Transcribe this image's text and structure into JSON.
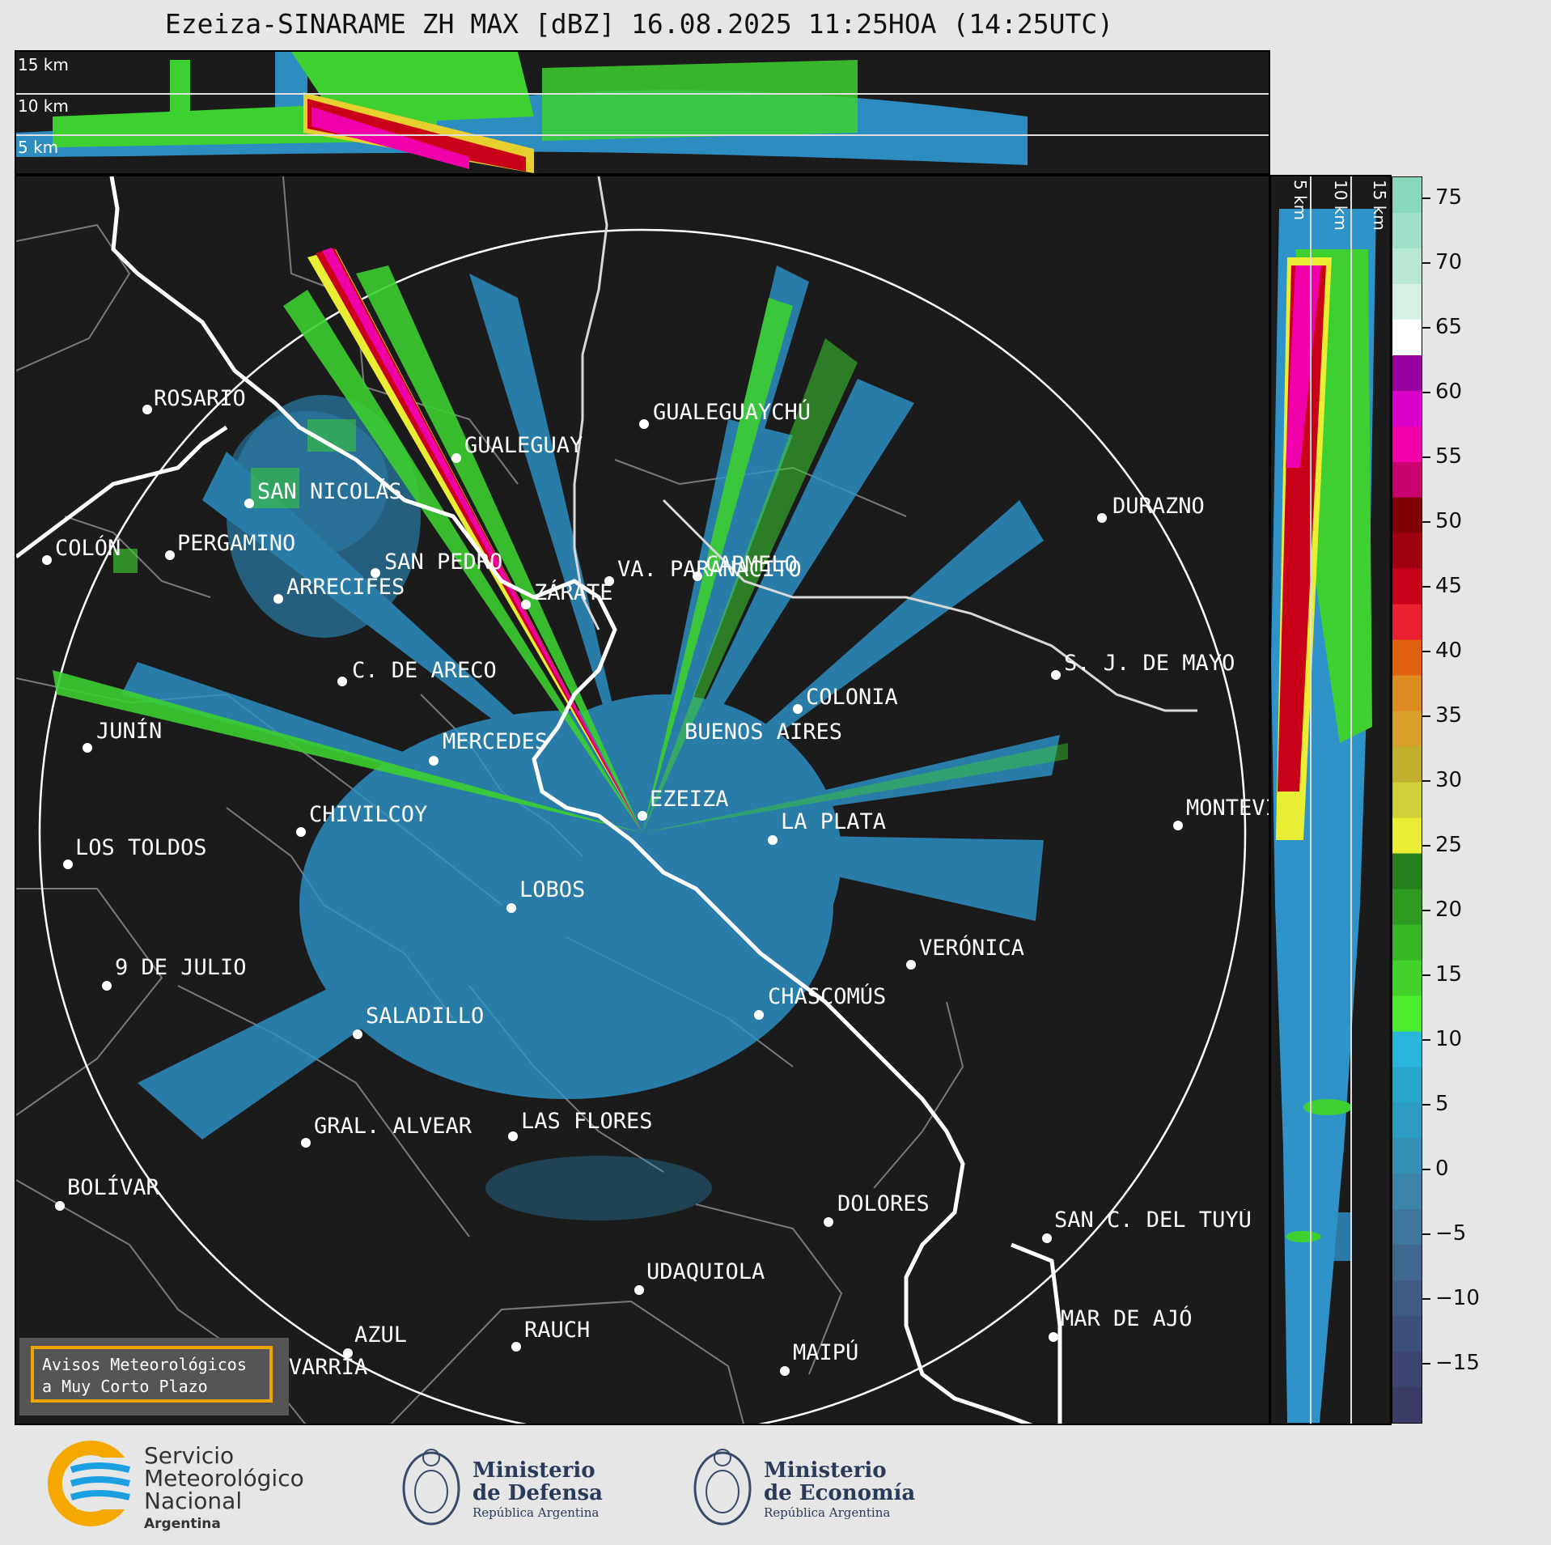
{
  "title": "Ezeiza-SINARAME ZH MAX [dBZ] 16.08.2025 11:25HOA (14:25UTC)",
  "altitude_labels": [
    "15 km",
    "10 km",
    "5 km"
  ],
  "colorbar": {
    "ticks": [
      "75",
      "70",
      "65",
      "60",
      "55",
      "50",
      "45",
      "40",
      "35",
      "30",
      "25",
      "20",
      "15",
      "10",
      "5",
      "0",
      "−5",
      "−10",
      "−15"
    ],
    "colors": [
      "#3a3c66",
      "#3b4570",
      "#3d5079",
      "#3f5b84",
      "#3f678f",
      "#3e759b",
      "#3b83a8",
      "#3590b6",
      "#2e9bc2",
      "#28a7ce",
      "#2ab6dc",
      "#4ded2f",
      "#43d12b",
      "#39b626",
      "#2f9a22",
      "#267f1d",
      "#e9ed33",
      "#cfd035",
      "#c0b02d",
      "#d6a02a",
      "#dd8a20",
      "#e06010",
      "#e82030",
      "#c80018",
      "#a00010",
      "#800008",
      "#c80070",
      "#f000a8",
      "#d800c8",
      "#9800a0",
      "#ffffff",
      "#d8f0e4",
      "#b8e8d4",
      "#a0e0c8",
      "#88d8bc"
    ]
  },
  "cities": [
    {
      "name": "ROSARIO"
    },
    {
      "name": "GUALEGUAYCHÚ"
    },
    {
      "name": "GUALEGUAY"
    },
    {
      "name": "SAN NICOLÁS"
    },
    {
      "name": "DURAZNO"
    },
    {
      "name": "SAN PEDRO"
    },
    {
      "name": "VA. PARANACITO"
    },
    {
      "name": "COLÓN"
    },
    {
      "name": "PERGAMINO"
    },
    {
      "name": "CARMELO"
    },
    {
      "name": "ARRECIFES"
    },
    {
      "name": "ZÁRATE"
    },
    {
      "name": "S. J. DE MAYO"
    },
    {
      "name": "C. DE ARECO"
    },
    {
      "name": "COLONIA"
    },
    {
      "name": "JUNÍN"
    },
    {
      "name": "MERCEDES"
    },
    {
      "name": "BUENOS AIRES"
    },
    {
      "name": "MONTEVIDEO"
    },
    {
      "name": "EZEIZA"
    },
    {
      "name": "CHIVILCOY"
    },
    {
      "name": "LA PLATA"
    },
    {
      "name": "LOS TOLDOS"
    },
    {
      "name": "LOBOS"
    },
    {
      "name": "VERÓNICA"
    },
    {
      "name": "9 DE JULIO"
    },
    {
      "name": "CHASCOMÚS"
    },
    {
      "name": "SALADILLO"
    },
    {
      "name": "GRAL. ALVEAR"
    },
    {
      "name": "LAS FLORES"
    },
    {
      "name": "BOLÍVAR"
    },
    {
      "name": "DOLORES"
    },
    {
      "name": "SAN C. DEL TUYÚ"
    },
    {
      "name": "UDAQUIOLA"
    },
    {
      "name": "MAR DE AJÓ"
    },
    {
      "name": "AZUL"
    },
    {
      "name": "RAUCH"
    },
    {
      "name": "OLAVARRÍA"
    },
    {
      "name": "MAIPÚ"
    }
  ],
  "avisos": {
    "line1": "Avisos Meteorológicos",
    "line2": "a Muy Corto Plazo"
  },
  "footer": {
    "smn": {
      "line1": "Servicio",
      "line2": "Meteorológico",
      "line3": "Nacional",
      "line4": "Argentina"
    },
    "defensa": {
      "line1": "Ministerio",
      "line2": "de Defensa",
      "line3": "República Argentina"
    },
    "economia": {
      "line1": "Ministerio",
      "line2": "de Economía",
      "line3": "República Argentina"
    }
  }
}
